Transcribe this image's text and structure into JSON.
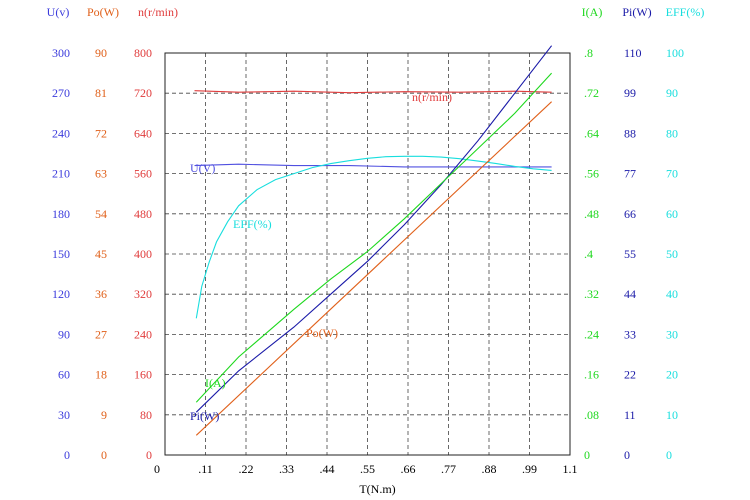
{
  "chart_data": {
    "type": "line",
    "xlabel": "T(N.m)",
    "x_ticks": [
      "0",
      ".11",
      ".22",
      ".33",
      ".44",
      ".55",
      ".66",
      ".77",
      ".88",
      ".99",
      "1.1"
    ],
    "xlim": [
      0,
      1.1
    ],
    "grid": true,
    "axes": [
      {
        "id": "U",
        "label": "U(v)",
        "side": "left",
        "color": "#3b3bdc",
        "range": [
          0,
          300
        ],
        "ticks": [
          "0",
          "30",
          "60",
          "90",
          "120",
          "150",
          "180",
          "210",
          "240",
          "270",
          "300"
        ]
      },
      {
        "id": "Po",
        "label": "Po(W)",
        "side": "left",
        "color": "#e0601a",
        "range": [
          0,
          90
        ],
        "ticks": [
          "0",
          "9",
          "18",
          "27",
          "36",
          "45",
          "54",
          "63",
          "72",
          "81",
          "90"
        ]
      },
      {
        "id": "n",
        "label": "n(r/min)",
        "side": "left",
        "color": "#e03c3c",
        "range": [
          0,
          800
        ],
        "ticks": [
          "0",
          "80",
          "160",
          "240",
          "320",
          "400",
          "480",
          "560",
          "640",
          "720",
          "800"
        ]
      },
      {
        "id": "I",
        "label": "I(A)",
        "side": "right",
        "color": "#1ed81e",
        "range": [
          0,
          0.8
        ],
        "ticks": [
          "0",
          ".08",
          ".16",
          ".24",
          ".32",
          ".4",
          ".48",
          ".56",
          ".64",
          ".72",
          ".8"
        ]
      },
      {
        "id": "Pi",
        "label": "Pi(W)",
        "side": "right",
        "color": "#1a1aa8",
        "range": [
          0,
          110
        ],
        "ticks": [
          "0",
          "11",
          "22",
          "33",
          "44",
          "55",
          "66",
          "77",
          "88",
          "99",
          "110"
        ]
      },
      {
        "id": "EFF",
        "label": "EFF(%)",
        "side": "right",
        "color": "#18dede",
        "range": [
          0,
          100
        ],
        "ticks": [
          "0",
          "10",
          "20",
          "30",
          "40",
          "50",
          "60",
          "70",
          "80",
          "90",
          "100"
        ]
      }
    ],
    "series": [
      {
        "name": "n(r/min)",
        "axis": "n",
        "color": "#e03c3c",
        "x": [
          0.08,
          0.2,
          0.35,
          0.5,
          0.65,
          0.8,
          0.95,
          1.05
        ],
        "y": [
          725,
          722,
          724,
          721,
          723,
          722,
          724,
          722
        ]
      },
      {
        "name": "U(V)",
        "axis": "U",
        "color": "#5050e0",
        "x": [
          0.08,
          0.2,
          0.35,
          0.5,
          0.65,
          0.8,
          0.95,
          1.05
        ],
        "y": [
          216,
          217,
          216,
          216,
          215,
          215,
          215,
          215
        ]
      },
      {
        "name": "EFF(%)",
        "axis": "EFF",
        "color": "#18dede",
        "x": [
          0.085,
          0.1,
          0.12,
          0.14,
          0.17,
          0.2,
          0.25,
          0.3,
          0.35,
          0.4,
          0.45,
          0.5,
          0.55,
          0.6,
          0.65,
          0.7,
          0.75,
          0.8,
          0.85,
          0.9,
          0.95,
          1.0,
          1.05
        ],
        "y": [
          34,
          42,
          48,
          53,
          58,
          62,
          66,
          68.5,
          70,
          71.5,
          72.5,
          73.2,
          73.8,
          74.2,
          74.3,
          74.3,
          74.1,
          73.7,
          73.1,
          72.5,
          71.8,
          71.2,
          70.8
        ]
      },
      {
        "name": "Po(W)",
        "axis": "Po",
        "color": "#e0601a",
        "x": [
          0.085,
          1.05
        ],
        "y": [
          4.4,
          79.1
        ]
      },
      {
        "name": "Pi(W)",
        "axis": "Pi",
        "color": "#1a1aa8",
        "x": [
          0.085,
          0.2,
          0.35,
          0.45,
          0.55,
          0.65,
          0.75,
          0.85,
          0.95,
          1.05
        ],
        "y": [
          11.7,
          23,
          35,
          44,
          53,
          63,
          74,
          86,
          99,
          112
        ]
      },
      {
        "name": "I(A)",
        "axis": "I",
        "color": "#1ed81e",
        "x": [
          0.085,
          0.2,
          0.35,
          0.45,
          0.55,
          0.65,
          0.75,
          0.85,
          0.95,
          1.05
        ],
        "y": [
          0.105,
          0.195,
          0.29,
          0.35,
          0.405,
          0.47,
          0.54,
          0.61,
          0.68,
          0.76
        ]
      }
    ],
    "curve_labels": [
      {
        "text": "n(r/min)",
        "series": "n(r/min)"
      },
      {
        "text": "U(V)",
        "series": "U(V)"
      },
      {
        "text": "EFF(%)",
        "series": "EFF(%)"
      },
      {
        "text": "Po(W)",
        "series": "Po(W)"
      },
      {
        "text": "I(A)",
        "series": "I(A)"
      },
      {
        "text": "Pi(W)",
        "series": "Pi(W)"
      }
    ]
  }
}
